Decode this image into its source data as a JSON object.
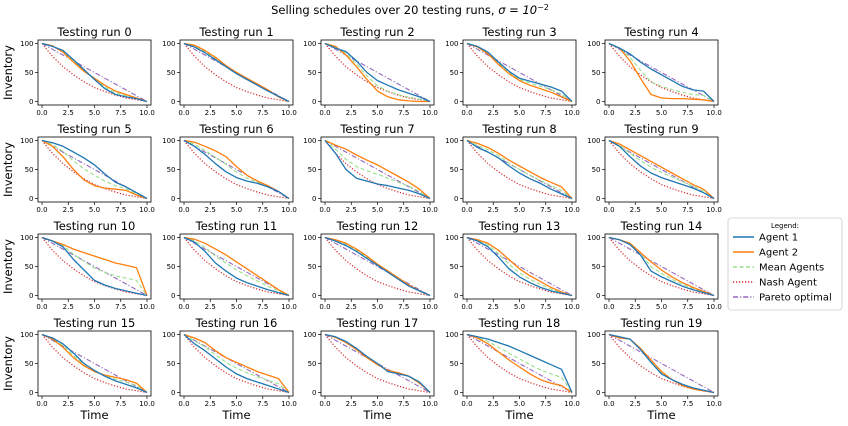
{
  "chart_data": {
    "type": "line",
    "title": "Selling schedules over 20 testing runs, ",
    "title_sigma": "σ = 10",
    "title_exp": "−2",
    "xlabel": "Time",
    "ylabel": "Inventory",
    "xlim": [
      0,
      10
    ],
    "ylim": [
      0,
      100
    ],
    "xticks": [
      "0.0",
      "2.5",
      "5.0",
      "7.5",
      "10.0"
    ],
    "yticks": [
      "0",
      "50",
      "100"
    ],
    "legend": {
      "title": "Legend:",
      "entries": [
        {
          "name": "Agent 1",
          "color": "#1f77b4",
          "style": "solid"
        },
        {
          "name": "Agent 2",
          "color": "#ff7f0e",
          "style": "solid"
        },
        {
          "name": "Mean Agents",
          "color": "#98df8a",
          "style": "dashed"
        },
        {
          "name": "Nash Agent",
          "color": "#d62728",
          "style": "dotted"
        },
        {
          "name": "Pareto optimal",
          "color": "#9467bd",
          "style": "dashdot"
        }
      ]
    },
    "x": [
      0,
      1,
      2,
      3,
      4,
      5,
      6,
      7,
      8,
      9,
      10
    ],
    "nash": [
      100,
      78,
      60,
      46,
      34,
      24,
      17,
      11,
      6,
      3,
      0
    ],
    "pareto": [
      100,
      90,
      80,
      70,
      60,
      50,
      40,
      30,
      20,
      10,
      0
    ],
    "panels": [
      {
        "title": "Testing run 0",
        "agent1": [
          100,
          95,
          88,
          72,
          55,
          38,
          22,
          12,
          8,
          5,
          0
        ],
        "agent2": [
          100,
          96,
          85,
          68,
          52,
          40,
          28,
          18,
          12,
          6,
          0
        ]
      },
      {
        "title": "Testing run 1",
        "agent1": [
          100,
          94,
          84,
          72,
          60,
          48,
          38,
          28,
          18,
          9,
          0
        ],
        "agent2": [
          100,
          97,
          88,
          76,
          62,
          50,
          40,
          30,
          20,
          8,
          0
        ]
      },
      {
        "title": "Testing run 2",
        "agent1": [
          100,
          92,
          86,
          70,
          50,
          36,
          28,
          20,
          14,
          8,
          0
        ],
        "agent2": [
          100,
          95,
          80,
          60,
          38,
          18,
          8,
          3,
          1,
          0,
          0
        ]
      },
      {
        "title": "Testing run 3",
        "agent1": [
          100,
          95,
          85,
          68,
          52,
          40,
          35,
          30,
          25,
          18,
          0
        ],
        "agent2": [
          100,
          94,
          82,
          64,
          48,
          36,
          28,
          22,
          16,
          8,
          0
        ]
      },
      {
        "title": "Testing run 4",
        "agent1": [
          100,
          92,
          82,
          68,
          56,
          46,
          36,
          26,
          20,
          18,
          0
        ],
        "agent2": [
          100,
          92,
          70,
          40,
          12,
          6,
          5,
          5,
          4,
          3,
          0
        ]
      },
      {
        "title": "Testing run 5",
        "agent1": [
          100,
          96,
          90,
          80,
          70,
          58,
          42,
          28,
          20,
          10,
          0
        ],
        "agent2": [
          100,
          90,
          72,
          50,
          32,
          22,
          18,
          16,
          14,
          6,
          0
        ]
      },
      {
        "title": "Testing run 6",
        "agent1": [
          100,
          90,
          76,
          60,
          46,
          36,
          30,
          26,
          20,
          12,
          0
        ],
        "agent2": [
          100,
          97,
          90,
          82,
          72,
          55,
          40,
          30,
          22,
          12,
          0
        ]
      },
      {
        "title": "Testing run 7",
        "agent1": [
          100,
          78,
          50,
          35,
          30,
          25,
          22,
          18,
          14,
          8,
          0
        ],
        "agent2": [
          100,
          92,
          85,
          75,
          66,
          58,
          48,
          38,
          28,
          16,
          0
        ]
      },
      {
        "title": "Testing run 8",
        "agent1": [
          100,
          88,
          80,
          70,
          56,
          44,
          34,
          26,
          16,
          8,
          0
        ],
        "agent2": [
          100,
          95,
          88,
          78,
          66,
          56,
          46,
          36,
          28,
          20,
          0
        ]
      },
      {
        "title": "Testing run 9",
        "agent1": [
          100,
          90,
          72,
          56,
          44,
          36,
          30,
          24,
          18,
          10,
          0
        ],
        "agent2": [
          100,
          94,
          84,
          74,
          64,
          54,
          44,
          34,
          24,
          16,
          0
        ]
      },
      {
        "title": "Testing run 10",
        "agent1": [
          100,
          94,
          84,
          62,
          44,
          26,
          18,
          12,
          8,
          4,
          0
        ],
        "agent2": [
          100,
          94,
          88,
          80,
          74,
          68,
          62,
          56,
          52,
          48,
          0
        ]
      },
      {
        "title": "Testing run 11",
        "agent1": [
          100,
          92,
          76,
          56,
          42,
          30,
          22,
          16,
          10,
          5,
          0
        ],
        "agent2": [
          100,
          97,
          90,
          80,
          70,
          58,
          46,
          34,
          22,
          10,
          0
        ]
      },
      {
        "title": "Testing run 12",
        "agent1": [
          100,
          94,
          86,
          76,
          64,
          52,
          40,
          28,
          16,
          8,
          0
        ],
        "agent2": [
          100,
          96,
          90,
          80,
          68,
          54,
          42,
          30,
          18,
          8,
          0
        ]
      },
      {
        "title": "Testing run 13",
        "agent1": [
          100,
          94,
          84,
          66,
          46,
          32,
          22,
          14,
          8,
          4,
          0
        ],
        "agent2": [
          100,
          96,
          90,
          78,
          62,
          46,
          34,
          24,
          14,
          6,
          0
        ]
      },
      {
        "title": "Testing run 14",
        "agent1": [
          100,
          96,
          88,
          70,
          42,
          32,
          24,
          16,
          10,
          5,
          0
        ],
        "agent2": [
          100,
          96,
          90,
          74,
          58,
          44,
          32,
          22,
          14,
          7,
          0
        ]
      },
      {
        "title": "Testing run 15",
        "agent1": [
          100,
          94,
          84,
          68,
          50,
          38,
          28,
          20,
          14,
          8,
          0
        ],
        "agent2": [
          100,
          92,
          78,
          60,
          46,
          36,
          30,
          26,
          22,
          16,
          0
        ]
      },
      {
        "title": "Testing run 16",
        "agent1": [
          100,
          84,
          72,
          58,
          44,
          32,
          24,
          18,
          12,
          6,
          0
        ],
        "agent2": [
          100,
          94,
          86,
          72,
          60,
          52,
          44,
          36,
          30,
          24,
          0
        ]
      },
      {
        "title": "Testing run 17",
        "agent1": [
          100,
          96,
          88,
          76,
          62,
          50,
          36,
          32,
          28,
          18,
          0
        ],
        "agent2": [
          100,
          95,
          86,
          74,
          60,
          48,
          38,
          34,
          28,
          16,
          0
        ]
      },
      {
        "title": "Testing run 18",
        "agent1": [
          100,
          96,
          92,
          86,
          80,
          72,
          64,
          56,
          48,
          40,
          0
        ],
        "agent2": [
          100,
          94,
          84,
          70,
          56,
          44,
          32,
          22,
          16,
          12,
          0
        ]
      },
      {
        "title": "Testing run 19",
        "agent1": [
          100,
          96,
          92,
          74,
          52,
          32,
          22,
          14,
          8,
          4,
          0
        ],
        "agent2": [
          100,
          94,
          92,
          76,
          56,
          36,
          22,
          12,
          6,
          3,
          0
        ]
      }
    ]
  }
}
